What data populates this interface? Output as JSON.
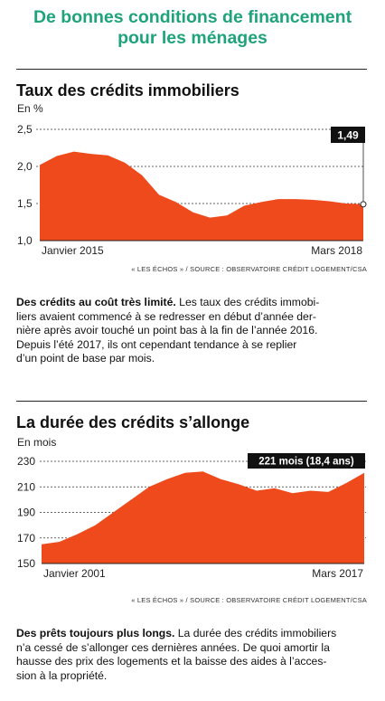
{
  "title": "De bonnes conditions de financement pour les ménages",
  "title_lines": [
    "De bonnes conditions de financement",
    "pour les ménages"
  ],
  "colors": {
    "title": "#1fa37a",
    "area": "#ee4a1c",
    "callout": "#111111"
  },
  "chart_data": [
    {
      "type": "area",
      "title": "Taux des crédits immobiliers",
      "unit": "En %",
      "ylim": [
        1.0,
        2.5
      ],
      "yticks": [
        "2,5",
        "2,0",
        "1,5",
        "1,0"
      ],
      "ytick_values": [
        2.5,
        2.0,
        1.5,
        1.0
      ],
      "xstart_label": "Janvier 2015",
      "xend_label": "Mars 2018",
      "grid": "dotted horizontal",
      "callout": "1,49",
      "source": "« LES ÉCHOS » / SOURCE : OBSERVATOIRE CRÉDIT LOGEMENT/CSA",
      "x": [
        "2015-01",
        "2015-03",
        "2015-05",
        "2015-07",
        "2015-09",
        "2015-11",
        "2016-01",
        "2016-03",
        "2016-05",
        "2016-07",
        "2016-09",
        "2016-11",
        "2017-01",
        "2017-03",
        "2017-05",
        "2017-07",
        "2017-09",
        "2017-11",
        "2018-01",
        "2018-03"
      ],
      "values": [
        2.02,
        2.14,
        2.2,
        2.17,
        2.15,
        2.05,
        1.88,
        1.62,
        1.52,
        1.38,
        1.31,
        1.34,
        1.47,
        1.52,
        1.56,
        1.56,
        1.55,
        1.53,
        1.5,
        1.49
      ]
    },
    {
      "type": "area",
      "title": "La durée des crédits s’allonge",
      "unit": "En mois",
      "ylim": [
        150,
        230
      ],
      "yticks": [
        "230",
        "210",
        "190",
        "170",
        "150"
      ],
      "ytick_values": [
        230,
        210,
        190,
        170,
        150
      ],
      "xstart_label": "Janvier 2001",
      "xend_label": "Mars 2017",
      "grid": "dotted horizontal",
      "callout": "221 mois (18,4 ans)",
      "source": "« LES ÉCHOS » / SOURCE : OBSERVATOIRE CRÉDIT LOGEMENT/CSA",
      "x": [
        "2001",
        "2002",
        "2003",
        "2004",
        "2005",
        "2006",
        "2007",
        "2007.5",
        "2008",
        "2008.5",
        "2009",
        "2010",
        "2011",
        "2012",
        "2013",
        "2014",
        "2015",
        "2016",
        "2017"
      ],
      "values": [
        165,
        167,
        173,
        180,
        190,
        200,
        210,
        216,
        221,
        222,
        216,
        212,
        207,
        209,
        205,
        207,
        206,
        213,
        221
      ]
    }
  ],
  "paragraphs": [
    {
      "lead": "Des crédits au coût très limité.",
      "lines": [
        "Les taux des crédits immobi-",
        "liers avaient commencé à se redresser en début d’année der-",
        "nière après avoir touché un point bas à la fin de l’année 2016.",
        "Depuis l’été 2017, ils ont cependant tendance à se replier",
        "d’un point de base par mois."
      ]
    },
    {
      "lead": "Des prêts toujours plus longs.",
      "lines": [
        "La durée des crédits immobiliers",
        "n’a cessé de s’allonger ces dernières années. De quoi amortir la",
        "hausse des prix des logements et la baisse des aides à l’acces-",
        "sion à la propriété."
      ]
    }
  ]
}
